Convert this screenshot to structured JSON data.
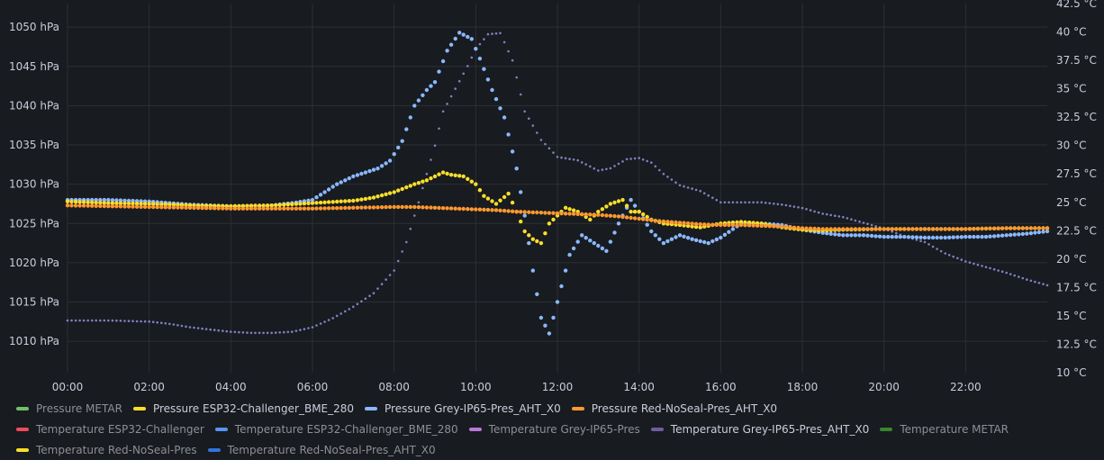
{
  "chart_data": {
    "type": "scatter",
    "title": "",
    "xlabel": "",
    "x_ticks": [
      "00:00",
      "02:00",
      "04:00",
      "06:00",
      "08:00",
      "10:00",
      "12:00",
      "14:00",
      "16:00",
      "18:00",
      "20:00",
      "22:00"
    ],
    "x_range_hours": [
      0,
      24
    ],
    "y_left": {
      "range": [
        1006,
        1053
      ],
      "ticks": [
        "1010 hPa",
        "1015 hPa",
        "1020 hPa",
        "1025 hPa",
        "1030 hPa",
        "1035 hPa",
        "1040 hPa",
        "1045 hPa",
        "1050 hPa"
      ],
      "tick_values": [
        1010,
        1015,
        1020,
        1025,
        1030,
        1035,
        1040,
        1045,
        1050
      ]
    },
    "y_right": {
      "range": [
        10,
        42.5
      ],
      "ticks": [
        "10 °C",
        "12.5 °C",
        "15 °C",
        "17.5 °C",
        "20 °C",
        "22.5 °C",
        "25 °C",
        "27.5 °C",
        "30 °C",
        "32.5 °C",
        "35 °C",
        "37.5 °C",
        "40 °C",
        "42.5 °C"
      ],
      "tick_values": [
        10,
        12.5,
        15,
        17.5,
        20,
        22.5,
        25,
        27.5,
        30,
        32.5,
        35,
        37.5,
        40,
        42.5
      ]
    },
    "grid": true,
    "series": [
      {
        "name": "Temperature Grey-IP65-Pres_AHT_X0",
        "axis": "right",
        "color": "#8080c0",
        "marker_size": 1.3,
        "x": [
          0,
          1,
          2,
          2.5,
          3,
          3.5,
          4,
          4.5,
          5,
          5.5,
          6,
          6.5,
          7,
          7.5,
          8,
          8.3,
          8.6,
          9,
          9.2,
          9.5,
          9.8,
          10,
          10.3,
          10.6,
          10.9,
          11.2,
          11.6,
          12,
          12.5,
          13,
          13.3,
          13.7,
          14,
          14.3,
          14.6,
          15,
          15.5,
          16,
          16.5,
          17,
          17.5,
          18,
          18.5,
          19,
          19.5,
          20,
          20.5,
          21,
          21.5,
          22,
          22.5,
          23,
          23.5,
          24
        ],
        "y": [
          14.6,
          14.6,
          14.5,
          14.3,
          14.0,
          13.8,
          13.6,
          13.5,
          13.5,
          13.6,
          14.0,
          14.8,
          15.8,
          17.0,
          19.0,
          21.5,
          25.0,
          30.0,
          33.0,
          35.0,
          37.0,
          38.5,
          39.8,
          39.9,
          37.5,
          33.0,
          30.5,
          29.0,
          28.7,
          27.8,
          28.0,
          28.8,
          28.9,
          28.5,
          27.5,
          26.5,
          26.0,
          25.0,
          25.0,
          25.0,
          24.8,
          24.5,
          24.0,
          23.7,
          23.2,
          22.7,
          22.0,
          21.5,
          20.5,
          19.8,
          19.3,
          18.8,
          18.2,
          17.7
        ]
      },
      {
        "name": "Pressure Grey-IP65-Pres_AHT_X0",
        "axis": "left",
        "color": "#8ab8ff",
        "marker_size": 2.2,
        "x": [
          0,
          1,
          2,
          3,
          4,
          5,
          5.5,
          6,
          6.3,
          6.6,
          7,
          7.3,
          7.6,
          7.9,
          8.2,
          8.5,
          8.8,
          9,
          9.3,
          9.6,
          9.9,
          10.1,
          10.4,
          10.7,
          11,
          11.2,
          11.4,
          11.6,
          11.8,
          12,
          12.3,
          12.6,
          12.9,
          13.2,
          13.5,
          13.8,
          14,
          14.3,
          14.6,
          15,
          15.3,
          15.7,
          16,
          16.5,
          17,
          17.5,
          18,
          18.5,
          19,
          19.5,
          20,
          20.5,
          21,
          21.5,
          22,
          22.5,
          23,
          23.5,
          24
        ],
        "y": [
          1028,
          1028,
          1027.8,
          1027.4,
          1027.2,
          1027.3,
          1027.6,
          1028,
          1029,
          1030,
          1031,
          1031.5,
          1032,
          1033,
          1035.5,
          1040,
          1042,
          1043,
          1047,
          1049.3,
          1048.5,
          1046,
          1042,
          1038.5,
          1032,
          1026,
          1019,
          1013,
          1011,
          1015,
          1021,
          1023.5,
          1022.5,
          1021.5,
          1025,
          1028,
          1026.5,
          1024,
          1022.5,
          1023.5,
          1023,
          1022.5,
          1023.2,
          1025,
          1025,
          1024.8,
          1024.2,
          1023.8,
          1023.5,
          1023.5,
          1023.3,
          1023.3,
          1023.2,
          1023.2,
          1023.3,
          1023.3,
          1023.5,
          1023.7,
          1024
        ]
      },
      {
        "name": "Pressure ESP32-Challenger_BME_280",
        "axis": "left",
        "color": "#fade2a",
        "marker_size": 2.2,
        "x": [
          0,
          1,
          2,
          3,
          4,
          5,
          6,
          7,
          7.5,
          8,
          8.5,
          8.8,
          9,
          9.2,
          9.4,
          9.7,
          10,
          10.2,
          10.5,
          10.8,
          11,
          11.2,
          11.4,
          11.6,
          11.8,
          12,
          12.2,
          12.5,
          12.8,
          13,
          13.3,
          13.6,
          13.8,
          14,
          14.3,
          14.6,
          15,
          15.5,
          16,
          16.5,
          17,
          17.5,
          18,
          18.5,
          19,
          20,
          21,
          22,
          23,
          24
        ],
        "y": [
          1027.8,
          1027.6,
          1027.5,
          1027.3,
          1027.2,
          1027.3,
          1027.6,
          1027.9,
          1028.3,
          1029,
          1030,
          1030.5,
          1031,
          1031.5,
          1031.2,
          1031,
          1030,
          1028.5,
          1027.5,
          1028.8,
          1026.5,
          1024,
          1023,
          1022.5,
          1025,
          1026,
          1027,
          1026.5,
          1025.5,
          1026.5,
          1027.5,
          1028,
          1026.5,
          1026.5,
          1025.5,
          1025,
          1024.8,
          1024.5,
          1025,
          1025.2,
          1025,
          1024.5,
          1024.2,
          1024.1,
          1024.2,
          1024.3,
          1024.3,
          1024.3,
          1024.4,
          1024.4
        ]
      },
      {
        "name": "Pressure Red-NoSeal-Pres_AHT_X0",
        "axis": "left",
        "color": "#ff9830",
        "marker_size": 2.2,
        "x": [
          0,
          1,
          2,
          3,
          4,
          5,
          6,
          7,
          8,
          8.5,
          9,
          9.5,
          10,
          10.5,
          11,
          11.5,
          12,
          12.5,
          13,
          13.5,
          14,
          14.5,
          15,
          15.5,
          16,
          16.5,
          17,
          17.5,
          18,
          18.5,
          19,
          20,
          21,
          22,
          23,
          24
        ],
        "y": [
          1027.3,
          1027.2,
          1027.1,
          1027,
          1026.9,
          1026.9,
          1026.9,
          1027,
          1027.1,
          1027.1,
          1027,
          1026.9,
          1026.8,
          1026.7,
          1026.5,
          1026.4,
          1026.3,
          1026.2,
          1026.1,
          1025.9,
          1025.6,
          1025.3,
          1025.1,
          1024.9,
          1024.8,
          1024.8,
          1024.7,
          1024.6,
          1024.4,
          1024.3,
          1024.3,
          1024.3,
          1024.3,
          1024.3,
          1024.4,
          1024.4
        ]
      }
    ],
    "legend": {
      "placement": "bottom",
      "rows": [
        [
          {
            "label": "Pressure METAR",
            "color": "#73bf69",
            "active": false
          },
          {
            "label": "Pressure ESP32-Challenger_BME_280",
            "color": "#fade2a",
            "active": true
          },
          {
            "label": "Pressure Grey-IP65-Pres_AHT_X0",
            "color": "#8ab8ff",
            "active": true
          },
          {
            "label": "Pressure Red-NoSeal-Pres_AHT_X0",
            "color": "#ff9830",
            "active": true
          }
        ],
        [
          {
            "label": "Temperature ESP32-Challenger",
            "color": "#f2495c",
            "active": false
          },
          {
            "label": "Temperature ESP32-Challenger_BME_280",
            "color": "#5794f2",
            "active": false
          },
          {
            "label": "Temperature Grey-IP65-Pres",
            "color": "#b877d9",
            "active": false
          },
          {
            "label": "Temperature Grey-IP65-Pres_AHT_X0",
            "color": "#705da0",
            "active": true
          },
          {
            "label": "Temperature METAR",
            "color": "#37872d",
            "active": false
          }
        ],
        [
          {
            "label": "Temperature Red-NoSeal-Pres",
            "color": "#fade2a",
            "active": false
          },
          {
            "label": "Temperature Red-NoSeal-Pres_AHT_X0",
            "color": "#3274d9",
            "active": false
          }
        ]
      ]
    }
  }
}
